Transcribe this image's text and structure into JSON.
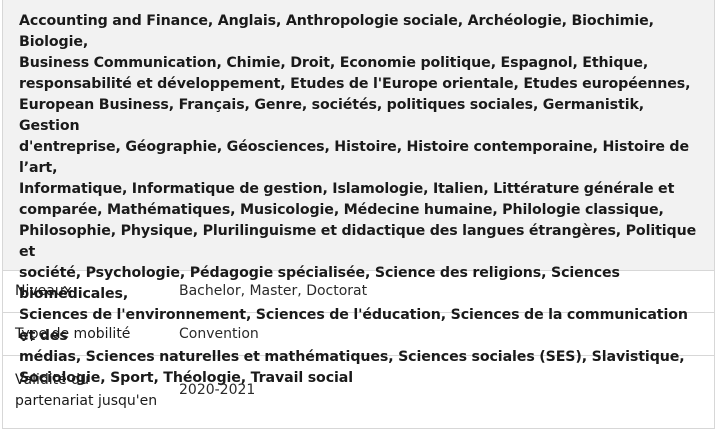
{
  "subjects": "Accounting and Finance, Anglais, Anthropologie sociale, Archéologie, Biochimie, Biologie,\nBusiness Communication, Chimie, Droit, Economie politique, Espagnol, Ethique,\nresponsabilité et développement, Etudes de l'Europe orientale, Etudes européennes,\nEuropean Business, Français, Genre, sociétés, politiques sociales, Germanistik, Gestion\nd'entreprise, Géographie, Géosciences, Histoire, Histoire contemporaine, Histoire de l’art,\nInformatique, Informatique de gestion, Islamologie, Italien, Littérature générale et\ncomparée, Mathématiques, Musicologie, Médecine humaine, Philologie classique,\nPhilosophie, Physique, Plurilinguisme et didactique des langues étrangères, Politique et\nsociété, Psychologie, Pédagogie spécialisée, Science des religions, Sciences biomédicales,\nSciences de l'environnement, Sciences de l'éducation, Sciences de la communication et des\nmédias, Sciences naturelles et mathématiques, Sciences sociales (SES), Slavistique,\nSociologie, Sport, Théologie, Travail social",
  "rows": [
    {
      "label": "Niveaux",
      "value": "Bachelor, Master, Doctorat"
    },
    {
      "label": "Type de mobilité",
      "value": "Convention"
    },
    {
      "label": "Validité du\npartenariat jusqu'en",
      "value": "2020-2021"
    }
  ],
  "colors": {
    "subjects_background": "#f2f2f2",
    "border": "#d7d7d7",
    "text": "#1a1a1a"
  }
}
